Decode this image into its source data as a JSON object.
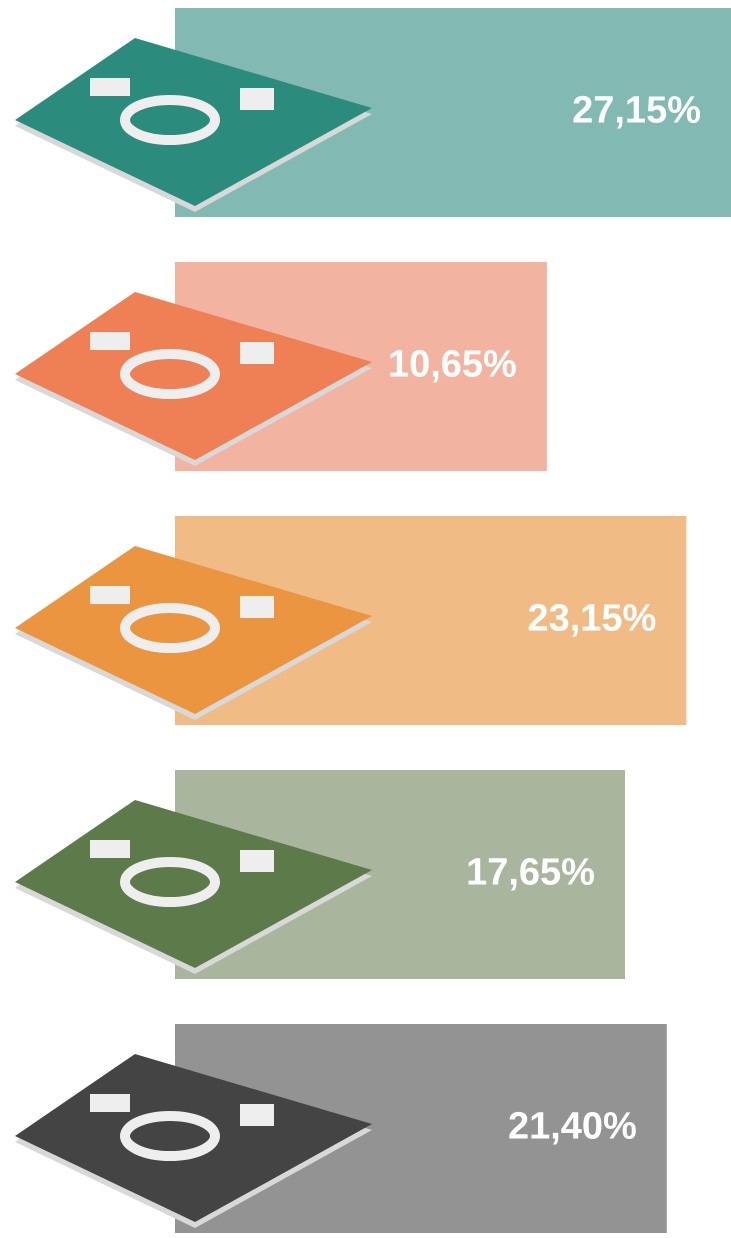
{
  "chart_data": {
    "type": "bar",
    "values": [
      27.15,
      10.65,
      23.15,
      17.65,
      21.4
    ],
    "value_labels": [
      "27,15%",
      "10,65%",
      "23,15%",
      "17,65%",
      "21,40%"
    ],
    "colors": [
      "#82bab3",
      "#f2b3a1",
      "#f1bb86",
      "#a9b59c",
      "#939393"
    ]
  }
}
